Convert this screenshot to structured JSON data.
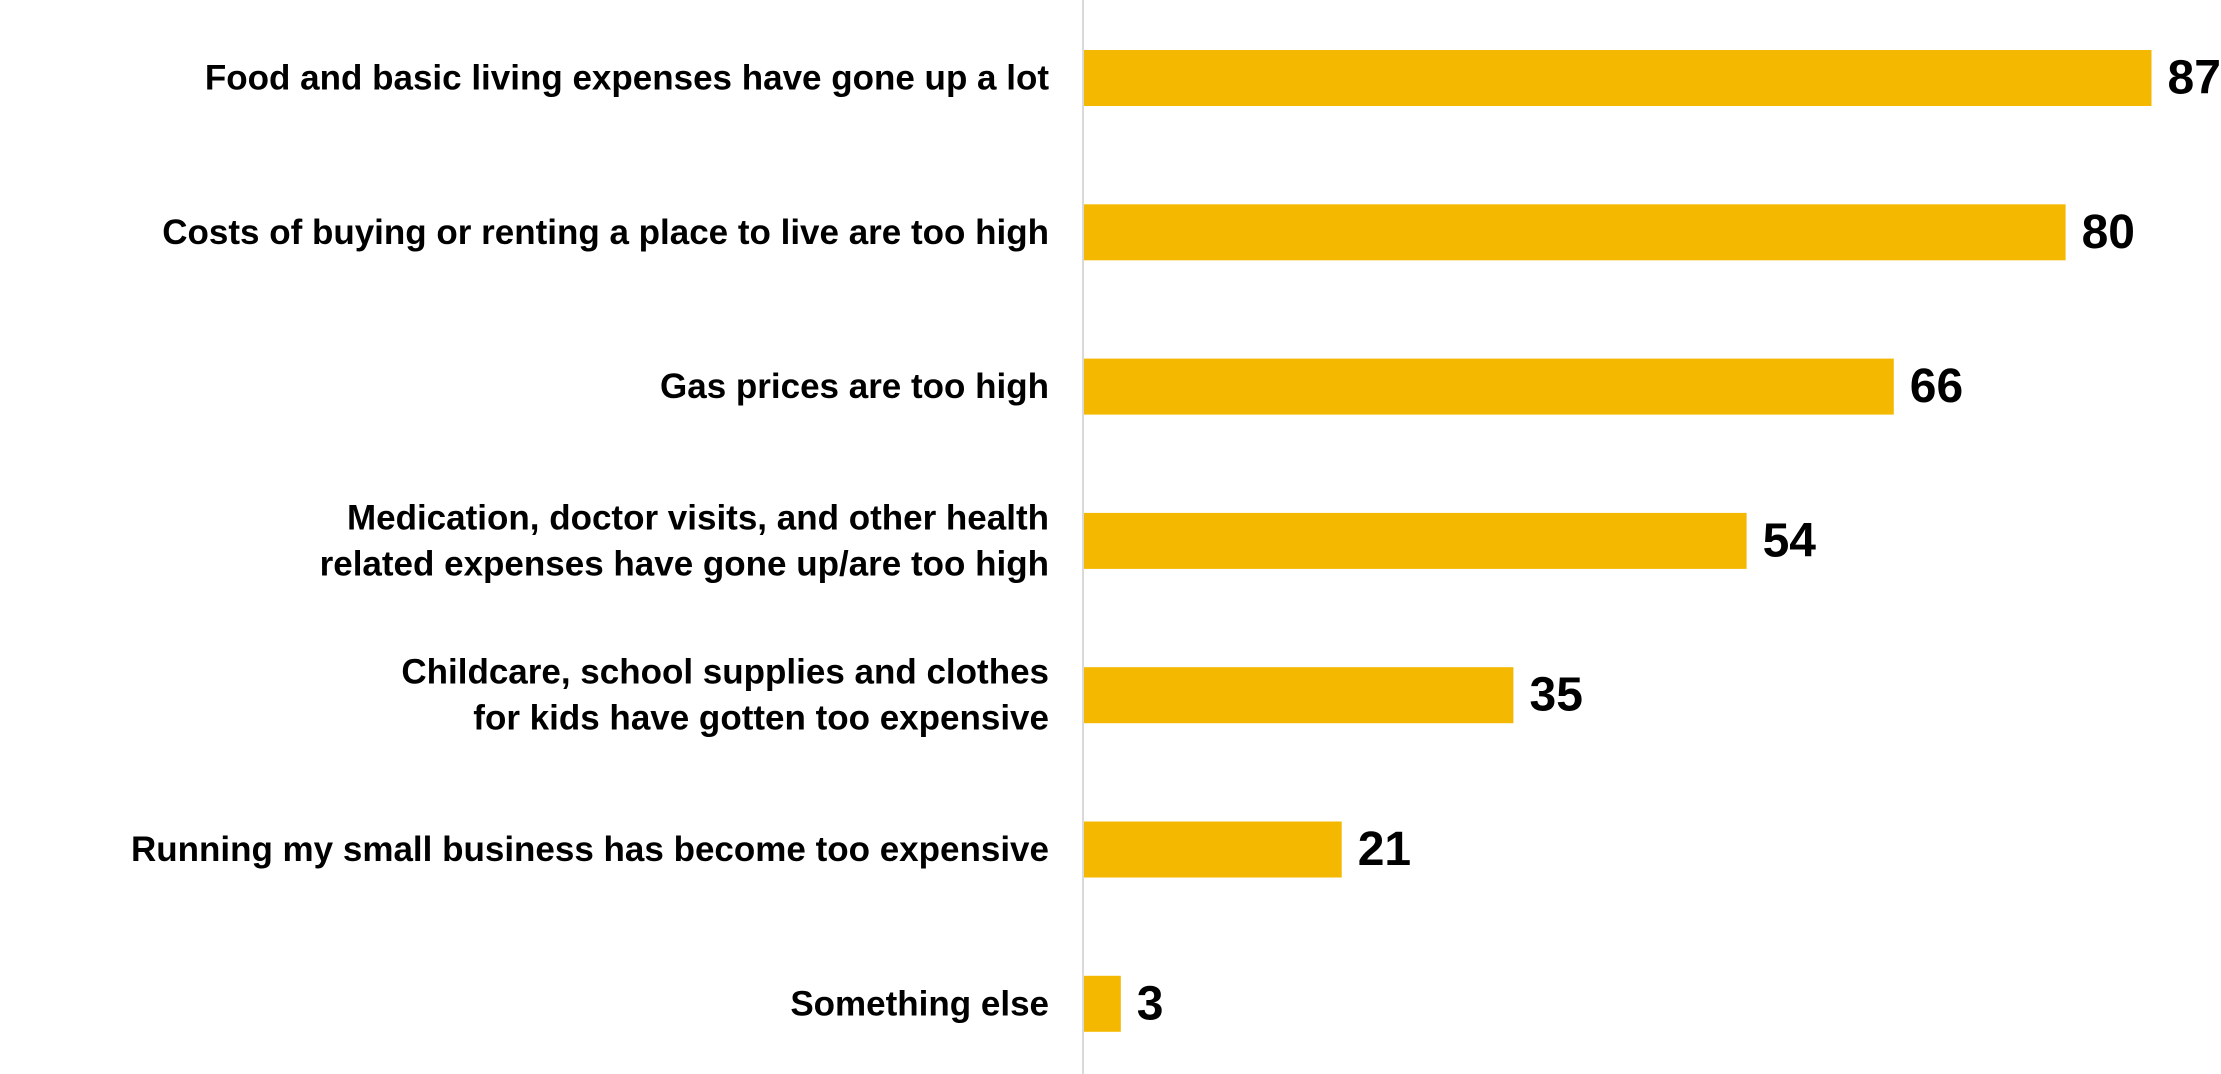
{
  "chart_data": {
    "type": "bar",
    "orientation": "horizontal",
    "categories": [
      [
        "Food and basic living expenses have gone up a lot"
      ],
      [
        "Costs of buying or renting a place to live are too high"
      ],
      [
        "Gas prices are too high"
      ],
      [
        "Medication, doctor visits, and other health",
        "related expenses have gone up/are too high"
      ],
      [
        "Childcare, school supplies and clothes",
        "for kids have gotten too expensive"
      ],
      [
        "Running my small business has become too expensive"
      ],
      [
        "Something else"
      ]
    ],
    "values": [
      87,
      80,
      66,
      54,
      35,
      21,
      3
    ],
    "value_labels": [
      "87",
      "80",
      "66",
      "54",
      "35",
      "21",
      "3"
    ],
    "xlim": [
      0,
      100
    ],
    "title": "",
    "xlabel": "",
    "ylabel": "",
    "grid": false,
    "legend": "none",
    "bar_color": "#F5B800",
    "axis_color": "#D9D9D9",
    "text_color": "#000000"
  }
}
